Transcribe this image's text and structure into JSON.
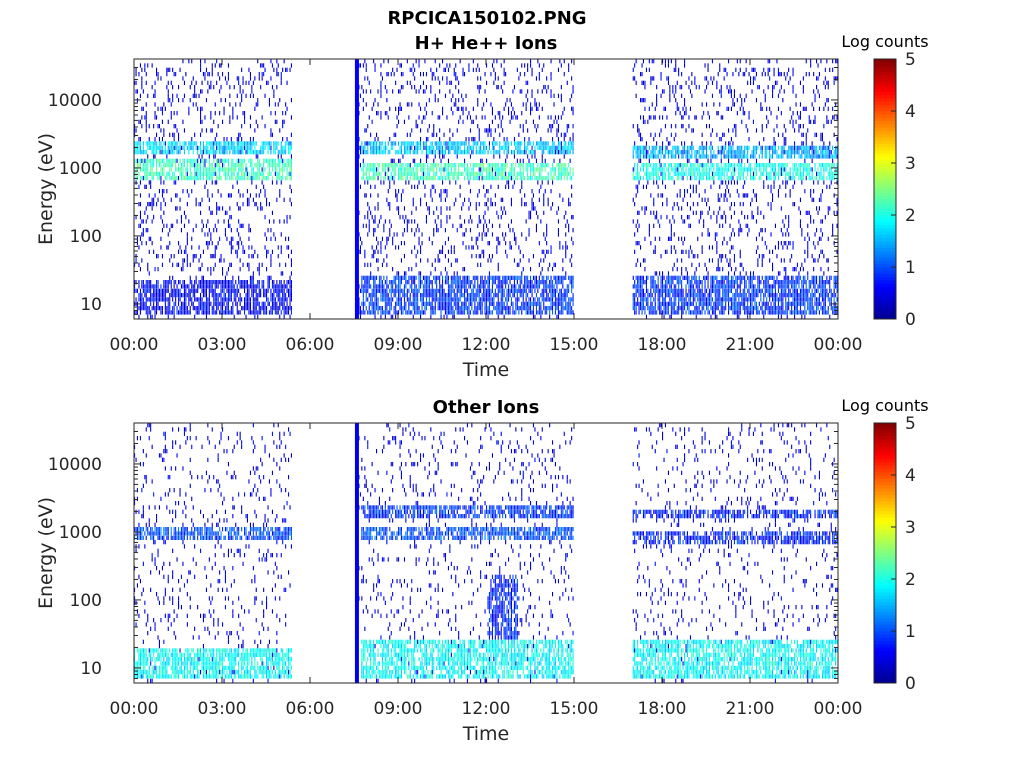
{
  "figure": {
    "title": "RPCICA150102.PNG"
  },
  "colormap": [
    "#00008f",
    "#0000ff",
    "#0080ff",
    "#00ffff",
    "#80ff80",
    "#ffff00",
    "#ff8000",
    "#ff0000",
    "#800000"
  ],
  "chart_data": [
    {
      "type": "heatmap",
      "title": "H+ He++ Ions",
      "xlabel": "Time",
      "ylabel": "Energy (eV)",
      "x_unit": "hours of day",
      "xlim": [
        0,
        24
      ],
      "ylim": [
        6,
        40000
      ],
      "y_scale": "log",
      "x_ticks": [
        "00:00",
        "03:00",
        "06:00",
        "09:00",
        "12:00",
        "15:00",
        "18:00",
        "21:00",
        "00:00"
      ],
      "y_ticks": [
        {
          "value": 10,
          "label": "10"
        },
        {
          "value": 100,
          "label": "100"
        },
        {
          "value": 1000,
          "label": "1000"
        },
        {
          "value": 10000,
          "label": "10000"
        }
      ],
      "colorbar": {
        "label": "Log counts",
        "range": [
          0,
          5
        ],
        "ticks": [
          "0",
          "1",
          "2",
          "3",
          "4",
          "5"
        ]
      },
      "data_intervals": [
        [
          0.0,
          5.35
        ],
        [
          7.55,
          15.0
        ],
        [
          17.0,
          24.0
        ]
      ],
      "bright_stripe": {
        "time": 7.6,
        "level": 0.6
      },
      "bands": [
        {
          "start": 0.0,
          "end": 5.35,
          "e_min": 1500,
          "e_max": 2600,
          "level": 1.7
        },
        {
          "start": 0.0,
          "end": 5.35,
          "e_min": 650,
          "e_max": 1300,
          "level": 2.2
        },
        {
          "start": 0.0,
          "end": 5.35,
          "e_min": 7,
          "e_max": 22,
          "level": 0.6
        },
        {
          "start": 7.7,
          "end": 15.0,
          "e_min": 1600,
          "e_max": 2400,
          "level": 1.6
        },
        {
          "start": 7.7,
          "end": 15.0,
          "e_min": 650,
          "e_max": 1200,
          "level": 2.2
        },
        {
          "start": 7.7,
          "end": 15.0,
          "e_min": 7,
          "e_max": 28,
          "level": 0.9
        },
        {
          "start": 17.0,
          "end": 24.0,
          "e_min": 1400,
          "e_max": 2200,
          "level": 1.5
        },
        {
          "start": 17.0,
          "end": 24.0,
          "e_min": 650,
          "e_max": 1100,
          "level": 2.0
        },
        {
          "start": 17.0,
          "end": 24.0,
          "e_min": 7,
          "e_max": 28,
          "level": 0.9
        }
      ],
      "scatter_density": 0.15
    },
    {
      "type": "heatmap",
      "title": "Other Ions",
      "xlabel": "Time",
      "ylabel": "Energy (eV)",
      "x_unit": "hours of day",
      "xlim": [
        0,
        24
      ],
      "ylim": [
        6,
        40000
      ],
      "y_scale": "log",
      "x_ticks": [
        "00:00",
        "03:00",
        "06:00",
        "09:00",
        "12:00",
        "15:00",
        "18:00",
        "21:00",
        "00:00"
      ],
      "y_ticks": [
        {
          "value": 10,
          "label": "10"
        },
        {
          "value": 100,
          "label": "100"
        },
        {
          "value": 1000,
          "label": "1000"
        },
        {
          "value": 10000,
          "label": "10000"
        }
      ],
      "colorbar": {
        "label": "Log counts",
        "range": [
          0,
          5
        ],
        "ticks": [
          "0",
          "1",
          "2",
          "3",
          "4",
          "5"
        ]
      },
      "data_intervals": [
        [
          0.0,
          5.35
        ],
        [
          7.55,
          15.0
        ],
        [
          17.0,
          24.0
        ]
      ],
      "bright_stripe": {
        "time": 7.6,
        "level": 0.5
      },
      "bands": [
        {
          "start": 0.0,
          "end": 5.35,
          "e_min": 750,
          "e_max": 1100,
          "level": 1.0
        },
        {
          "start": 0.0,
          "end": 5.35,
          "e_min": 7,
          "e_max": 20,
          "level": 1.9
        },
        {
          "start": 7.7,
          "end": 15.0,
          "e_min": 1600,
          "e_max": 2400,
          "level": 0.9
        },
        {
          "start": 7.7,
          "end": 15.0,
          "e_min": 750,
          "e_max": 1200,
          "level": 1.0
        },
        {
          "start": 7.7,
          "end": 15.0,
          "e_min": 7,
          "e_max": 25,
          "level": 1.9
        },
        {
          "start": 12.1,
          "end": 13.1,
          "e_min": 25,
          "e_max": 220,
          "level": 0.8
        },
        {
          "start": 17.0,
          "end": 24.0,
          "e_min": 1500,
          "e_max": 2200,
          "level": 0.8
        },
        {
          "start": 17.0,
          "end": 24.0,
          "e_min": 700,
          "e_max": 1000,
          "level": 0.8
        },
        {
          "start": 17.0,
          "end": 24.0,
          "e_min": 7,
          "e_max": 25,
          "level": 1.9
        }
      ],
      "scatter_density": 0.09
    }
  ]
}
